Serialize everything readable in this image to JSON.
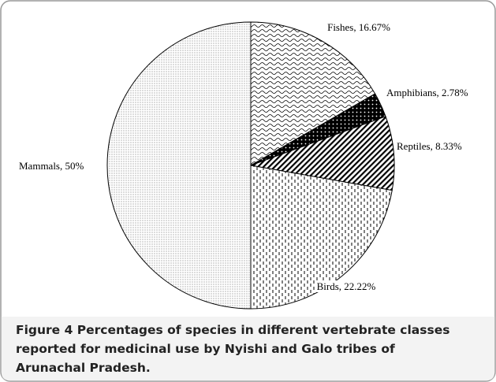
{
  "chart_data": {
    "type": "pie",
    "values": [
      16.67,
      2.78,
      8.33,
      22.22,
      50
    ],
    "value_labels": [
      "Fishes, 16.67%",
      "Amphibians, 2.78%",
      "Reptiles, 8.33%",
      "Birds, 22.22%",
      "Mammals, 50%"
    ],
    "caption_label": "Figure 4",
    "caption_lines": [
      "Percentages of species in different vertebrate classes",
      "reported for medicinal use by Nyishi and Galo tribes of",
      "Arunachal Pradesh."
    ]
  }
}
